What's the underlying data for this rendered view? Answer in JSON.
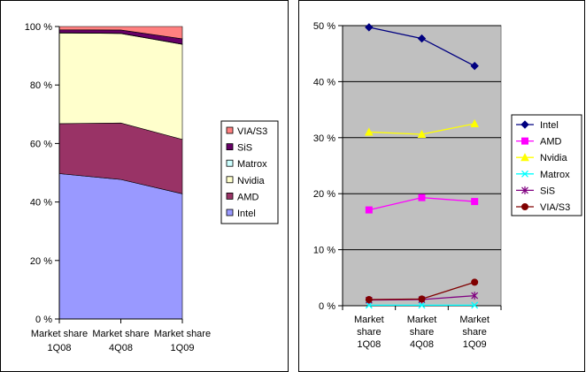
{
  "chart_data": [
    {
      "type": "area",
      "stacking": "percent",
      "title": "",
      "categories": [
        "Market share 1Q08",
        "Market share 4Q08",
        "Market share 1Q09"
      ],
      "category_lines": [
        [
          "Market share",
          "1Q08"
        ],
        [
          "Market share",
          "4Q08"
        ],
        [
          "Market share",
          "1Q09"
        ]
      ],
      "y_ticks": [
        "0 %",
        "20 %",
        "40 %",
        "60 %",
        "80 %",
        "100 %"
      ],
      "ylim": [
        0,
        100
      ],
      "grid": false,
      "legend": "right",
      "legend_order": [
        "VIA/S3",
        "SiS",
        "Matrox",
        "Nvidia",
        "AMD",
        "Intel"
      ],
      "series": [
        {
          "name": "Intel",
          "values": [
            49.7,
            47.7,
            42.8
          ],
          "color": "#9999ff"
        },
        {
          "name": "AMD",
          "values": [
            17.1,
            19.3,
            18.6
          ],
          "color": "#993366"
        },
        {
          "name": "Nvidia",
          "values": [
            31.0,
            30.6,
            32.5
          ],
          "color": "#ffffcc"
        },
        {
          "name": "Matrox",
          "values": [
            0.1,
            0.1,
            0.1
          ],
          "color": "#ccffff"
        },
        {
          "name": "SiS",
          "values": [
            1.0,
            1.1,
            1.8
          ],
          "color": "#660066"
        },
        {
          "name": "VIA/S3",
          "values": [
            1.1,
            1.2,
            4.2
          ],
          "color": "#ff8080"
        }
      ]
    },
    {
      "type": "line",
      "title": "",
      "categories": [
        "Market share 1Q08",
        "Market share 4Q08",
        "Market share 1Q09"
      ],
      "category_lines": [
        [
          "Market",
          "share",
          "1Q08"
        ],
        [
          "Market",
          "share",
          "4Q08"
        ],
        [
          "Market",
          "share",
          "1Q09"
        ]
      ],
      "y_ticks": [
        "0 %",
        "10 %",
        "20 %",
        "30 %",
        "40 %",
        "50 %"
      ],
      "ylim": [
        0,
        50
      ],
      "grid": true,
      "plot_background": "#c0c0c0",
      "legend": "right",
      "series": [
        {
          "name": "Intel",
          "values": [
            49.7,
            47.7,
            42.8
          ],
          "color": "#000080",
          "marker": "diamond"
        },
        {
          "name": "AMD",
          "values": [
            17.1,
            19.3,
            18.6
          ],
          "color": "#ff00ff",
          "marker": "square"
        },
        {
          "name": "Nvidia",
          "values": [
            31.0,
            30.6,
            32.5
          ],
          "color": "#ffff00",
          "marker": "triangle"
        },
        {
          "name": "Matrox",
          "values": [
            0.1,
            0.1,
            0.1
          ],
          "color": "#00ffff",
          "marker": "x"
        },
        {
          "name": "SiS",
          "values": [
            1.0,
            1.1,
            1.8
          ],
          "color": "#800080",
          "marker": "star"
        },
        {
          "name": "VIA/S3",
          "values": [
            1.1,
            1.2,
            4.2
          ],
          "color": "#800000",
          "marker": "circle"
        }
      ]
    }
  ]
}
